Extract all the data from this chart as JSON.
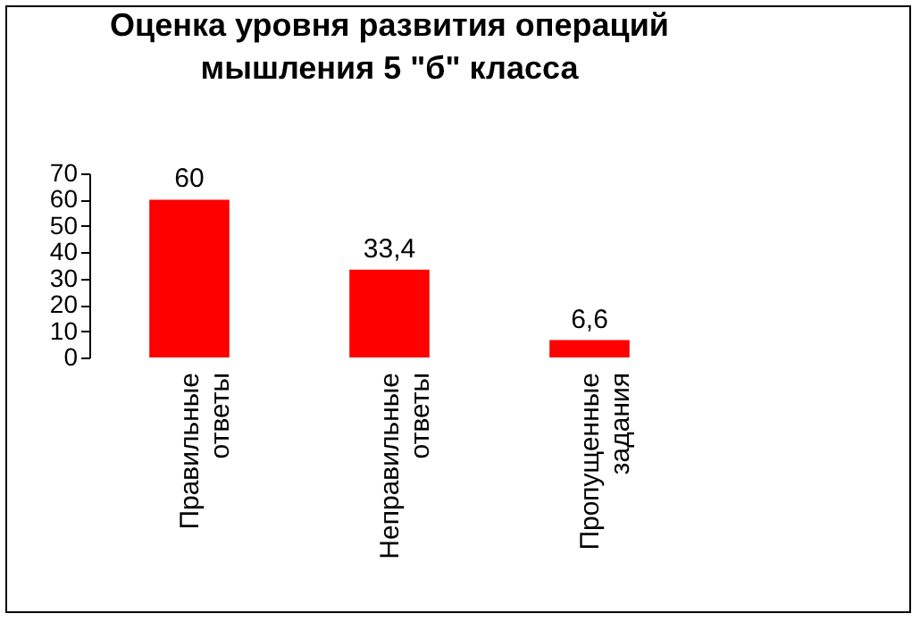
{
  "chart_data": {
    "type": "bar",
    "title": "Оценка уровня развития операций мышления 5 \"б\" класса",
    "categories": [
      "Правильные ответы",
      "Неправильные ответы",
      "Пропущенные задания"
    ],
    "values": [
      60,
      33.4,
      6.6
    ],
    "color": "#ff0000",
    "value_labels": [
      "60",
      "33,4",
      "6,6"
    ],
    "ylim": [
      0,
      70
    ],
    "yticks": [
      0,
      10,
      20,
      30,
      40,
      50,
      60,
      70
    ],
    "grid": false
  }
}
